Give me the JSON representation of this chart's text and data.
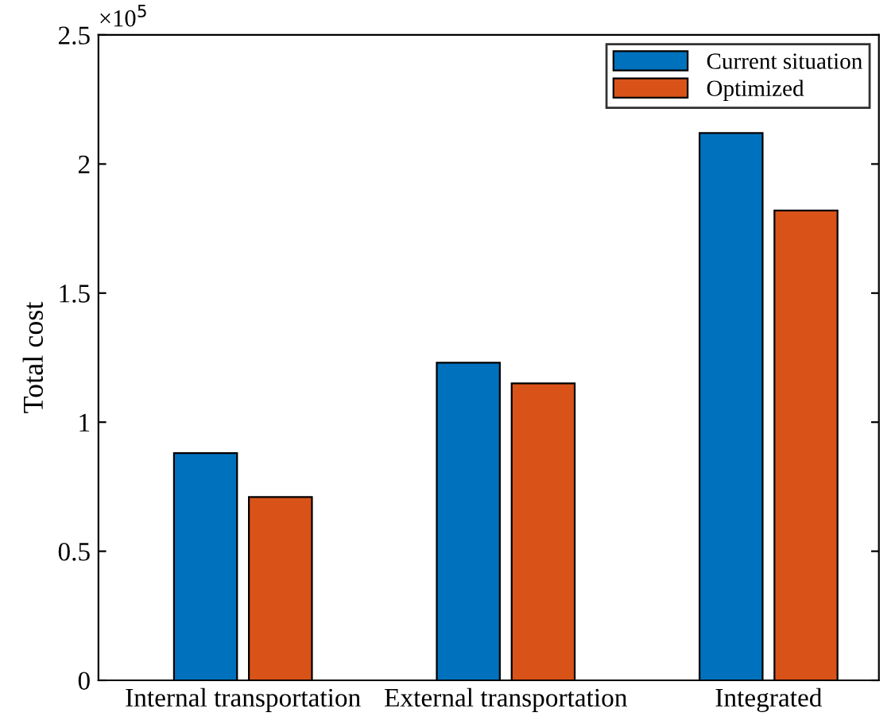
{
  "chart_data": {
    "type": "bar",
    "ylabel": "Total cost",
    "annotations": [
      "×10$^{5}$"
    ],
    "categories": [
      "Internal transportation",
      "External transportation",
      "Integrated"
    ],
    "series": [
      {
        "name": "Current situation",
        "color": "#0072bd",
        "values": [
          0.88,
          1.23,
          2.12
        ]
      },
      {
        "name": "Optimized",
        "color": "#d95319",
        "values": [
          0.71,
          1.15,
          1.82
        ]
      }
    ],
    "ylim": [
      0,
      2.5
    ],
    "yticks": [
      0,
      0.5,
      1,
      1.5,
      2,
      2.5
    ],
    "grid": false,
    "legend": "top right"
  }
}
